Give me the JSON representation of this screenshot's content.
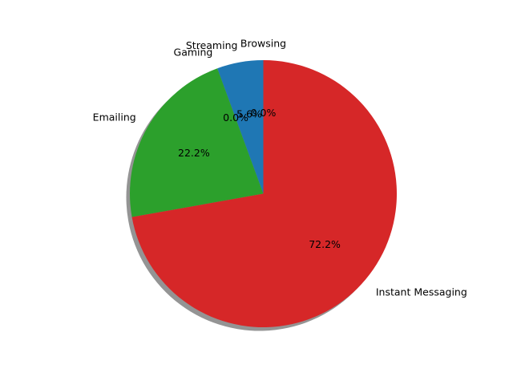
{
  "chart_data": {
    "type": "pie",
    "labels": [
      "Browsing",
      "Streaming",
      "Gaming",
      "Emailing",
      "Instant Messaging"
    ],
    "values": [
      0.0,
      5.6,
      0.0,
      22.2,
      72.2
    ],
    "autopct": [
      "0.0%",
      "5.6%",
      "0.0%",
      "22.2%",
      "72.2%"
    ],
    "colors": [
      "#ff7f0e",
      "#1f77b4",
      "#9467bd",
      "#2ca02c",
      "#d62728"
    ],
    "start_angle_deg": 90,
    "direction": "counterclockwise",
    "shadow": true,
    "title": ""
  }
}
